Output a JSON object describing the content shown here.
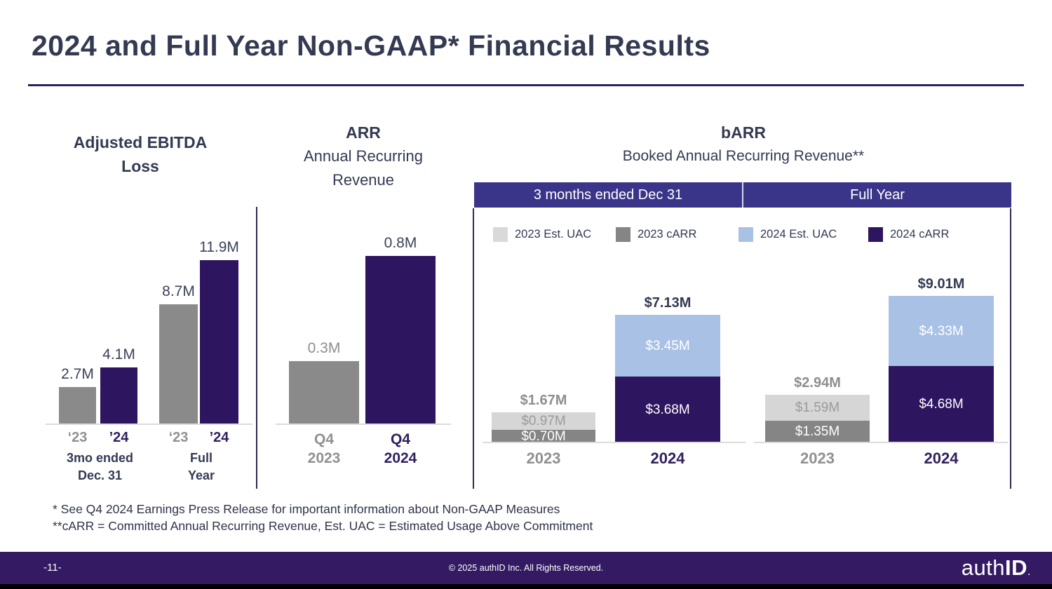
{
  "slide": {
    "title": "2024 and Full Year Non-GAAP* Financial Results",
    "footnotes": [
      "* See Q4 2024 Earnings Press Release for important information about Non-GAAP Measures",
      "**cARR = Committed Annual Recurring Revenue, Est. UAC = Estimated Usage Above Commitment"
    ]
  },
  "footer": {
    "page_number": "-11-",
    "copyright": "© 2025 authID Inc. All Rights Reserved.",
    "logo": {
      "auth": "auth",
      "id": "ID",
      "dot": "."
    }
  },
  "colors": {
    "heading_text": "#333A52",
    "accent_rule": "#31205E",
    "bar_gray": "#8A8A8A",
    "bar_dark_purple": "#2E1560",
    "segment_light_gray": "#D6D6D6",
    "segment_light_blue": "#A9C1E4",
    "header_band": "#3B3589",
    "footer_bar": "#341A63",
    "gray_text": "#8E8E8E"
  },
  "chart_data": [
    {
      "id": "adjusted-ebitda-loss",
      "type": "bar",
      "title_line1": "Adjusted EBITDA",
      "title_line2": "Loss",
      "unit": "M",
      "ylim": [
        0,
        13
      ],
      "groups": [
        {
          "label_line1": "3mo ended",
          "label_line2": "Dec. 31",
          "bars": [
            {
              "tick": "‘23",
              "series": "2023",
              "value": 2.7,
              "value_label": "2.7M"
            },
            {
              "tick": "’24",
              "series": "2024",
              "value": 4.1,
              "value_label": "4.1M"
            }
          ]
        },
        {
          "label_line1": "Full",
          "label_line2": "Year",
          "bars": [
            {
              "tick": "‘23",
              "series": "2023",
              "value": 8.7,
              "value_label": "8.7M"
            },
            {
              "tick": "’24",
              "series": "2024",
              "value": 11.9,
              "value_label": "11.9M"
            }
          ]
        }
      ]
    },
    {
      "id": "arr",
      "type": "bar",
      "title": "ARR",
      "subtitle_line1": "Annual Recurring",
      "subtitle_line2": "Revenue",
      "unit": "M",
      "ylim": [
        0,
        0.9
      ],
      "bars": [
        {
          "tick_line1": "Q4",
          "tick_line2": "2023",
          "series": "2023",
          "value": 0.3,
          "value_label": "0.3M"
        },
        {
          "tick_line1": "Q4",
          "tick_line2": "2024",
          "series": "2024",
          "value": 0.8,
          "value_label": "0.8M"
        }
      ]
    },
    {
      "id": "barr",
      "type": "stacked-bar",
      "title": "bARR",
      "subtitle": "Booked Annual Recurring Revenue**",
      "unit": "$M",
      "column_headers": [
        "3 months ended Dec 31",
        "Full Year"
      ],
      "legend": [
        {
          "label": "2023 Est. UAC",
          "color": "#D9D9D9"
        },
        {
          "label": "2023 cARR",
          "color": "#858585"
        },
        {
          "label": "2024 Est. UAC",
          "color": "#A9C1E4"
        },
        {
          "label": "2024 cARR",
          "color": "#2E1560"
        }
      ],
      "groups": [
        {
          "header": "3 months ended Dec 31",
          "bars": [
            {
              "category": "2023",
              "total": 1.67,
              "total_label": "$1.67M",
              "segments": [
                {
                  "name": "2023 Est. UAC",
                  "value": 0.97,
                  "label": "$0.97M"
                },
                {
                  "name": "2023 cARR",
                  "value": 0.7,
                  "label": "$0.70M"
                }
              ]
            },
            {
              "category": "2024",
              "total": 7.13,
              "total_label": "$7.13M",
              "segments": [
                {
                  "name": "2024 Est. UAC",
                  "value": 3.45,
                  "label": "$3.45M"
                },
                {
                  "name": "2024 cARR",
                  "value": 3.68,
                  "label": "$3.68M"
                }
              ]
            }
          ]
        },
        {
          "header": "Full Year",
          "bars": [
            {
              "category": "2023",
              "total": 2.94,
              "total_label": "$2.94M",
              "segments": [
                {
                  "name": "2023 Est. UAC",
                  "value": 1.59,
                  "label": "$1.59M"
                },
                {
                  "name": "2023 cARR",
                  "value": 1.35,
                  "label": "$1.35M"
                }
              ]
            },
            {
              "category": "2024",
              "total": 9.01,
              "total_label": "$9.01M",
              "segments": [
                {
                  "name": "2024 Est. UAC",
                  "value": 4.33,
                  "label": "$4.33M"
                },
                {
                  "name": "2024 cARR",
                  "value": 4.68,
                  "label": "$4.68M"
                }
              ]
            }
          ]
        }
      ]
    }
  ]
}
